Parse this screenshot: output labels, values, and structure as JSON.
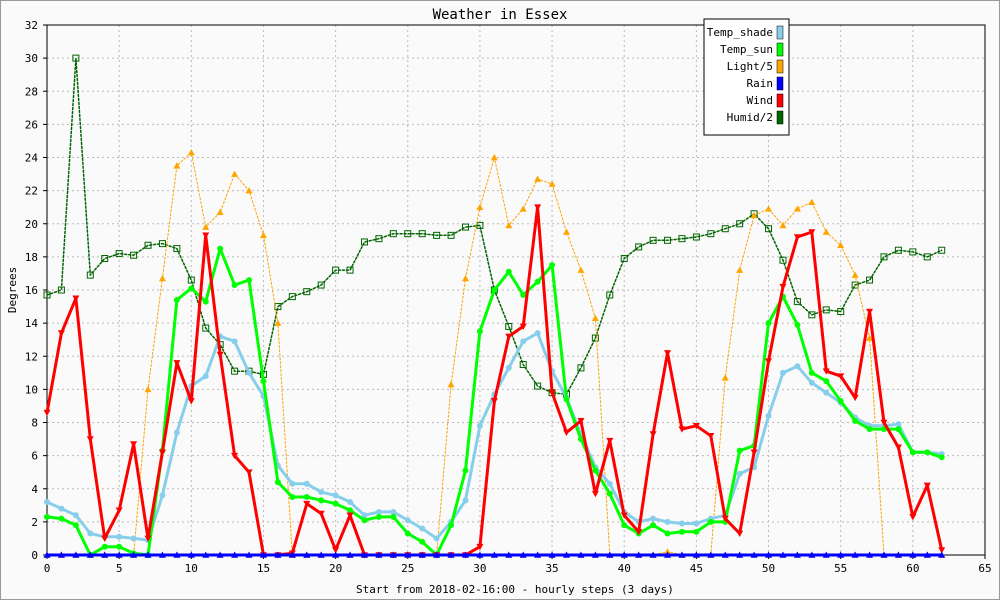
{
  "chart_data": {
    "type": "line",
    "title": "Weather in Essex",
    "xlabel": "Start from 2018-02-16:00 - hourly steps (3 days)",
    "ylabel": "Degrees",
    "xlim": [
      0,
      65
    ],
    "ylim": [
      0,
      32
    ],
    "xticks": [
      0,
      5,
      10,
      15,
      20,
      25,
      30,
      35,
      40,
      45,
      50,
      55,
      60,
      65
    ],
    "yticks": [
      0,
      2,
      4,
      6,
      8,
      10,
      12,
      14,
      16,
      18,
      20,
      22,
      24,
      26,
      28,
      30,
      32
    ],
    "grid": true,
    "legend_position": "top-right",
    "x": [
      0,
      1,
      2,
      3,
      4,
      5,
      6,
      7,
      8,
      9,
      10,
      11,
      12,
      13,
      14,
      15,
      16,
      17,
      18,
      19,
      20,
      21,
      22,
      23,
      24,
      25,
      26,
      27,
      28,
      29,
      30,
      31,
      32,
      33,
      34,
      35,
      36,
      37,
      38,
      39,
      40,
      41,
      42,
      43,
      44,
      45,
      46,
      47,
      48,
      49,
      50,
      51,
      52,
      53,
      54,
      55,
      56,
      57,
      58,
      59,
      60,
      61,
      62
    ],
    "series": [
      {
        "name": "Temp_shade",
        "color": "#87ceeb",
        "values": [
          3.2,
          2.8,
          2.4,
          1.3,
          1.1,
          1.1,
          1.0,
          0.9,
          3.6,
          7.4,
          10.2,
          10.8,
          13.2,
          12.9,
          11.0,
          9.6,
          5.4,
          4.3,
          4.3,
          3.8,
          3.6,
          3.2,
          2.4,
          2.6,
          2.6,
          2.1,
          1.6,
          1.0,
          2.0,
          3.3,
          7.8,
          9.7,
          11.3,
          12.9,
          13.4,
          11.1,
          9.5,
          7.3,
          5.3,
          4.3,
          2.6,
          2.0,
          2.2,
          2.0,
          1.9,
          1.9,
          2.2,
          2.4,
          4.9,
          5.3,
          8.4,
          11.0,
          11.4,
          10.4,
          9.8,
          9.2,
          8.3,
          7.8,
          7.8,
          7.9,
          6.2,
          6.2,
          6.1
        ]
      },
      {
        "name": "Temp_sun",
        "color": "#00ff00",
        "values": [
          2.3,
          2.2,
          1.8,
          0.0,
          0.5,
          0.5,
          0.1,
          0.0,
          6.3,
          15.4,
          16.1,
          15.3,
          18.5,
          16.3,
          16.6,
          10.5,
          4.4,
          3.5,
          3.5,
          3.3,
          3.1,
          2.7,
          2.1,
          2.3,
          2.3,
          1.3,
          0.8,
          0.0,
          1.8,
          5.1,
          13.5,
          16.0,
          17.1,
          15.7,
          16.5,
          17.5,
          9.4,
          7.0,
          5.1,
          3.7,
          1.8,
          1.3,
          1.8,
          1.3,
          1.4,
          1.4,
          2.0,
          2.0,
          6.3,
          6.6,
          14.0,
          15.6,
          13.9,
          11.0,
          10.5,
          9.3,
          8.1,
          7.6,
          7.6,
          7.6,
          6.2,
          6.2,
          5.9
        ]
      },
      {
        "name": "Light/5",
        "color": "#ffa500",
        "values": [
          0.0,
          0.0,
          0.0,
          0.0,
          0.0,
          0.0,
          0.0,
          10.0,
          16.7,
          23.5,
          24.3,
          19.8,
          20.7,
          23.0,
          22.0,
          19.3,
          14.0,
          0.0,
          0.0,
          0.0,
          0.0,
          0.0,
          0.0,
          0.0,
          0.0,
          0.0,
          0.0,
          0.0,
          10.3,
          16.7,
          21.0,
          24.0,
          19.9,
          20.9,
          22.7,
          22.4,
          19.5,
          17.2,
          14.3,
          0.0,
          0.0,
          0.0,
          0.0,
          0.2,
          0.0,
          0.0,
          0.0,
          10.7,
          17.2,
          20.5,
          20.9,
          19.9,
          20.9,
          21.3,
          19.5,
          18.7,
          16.9,
          13.1,
          0.0,
          0.0,
          0.0,
          0.0,
          0.0
        ]
      },
      {
        "name": "Rain",
        "color": "#0000ff",
        "values": [
          0,
          0,
          0,
          0,
          0,
          0,
          0,
          0,
          0,
          0,
          0,
          0,
          0,
          0,
          0,
          0,
          0,
          0,
          0,
          0,
          0,
          0,
          0,
          0,
          0,
          0,
          0,
          0,
          0,
          0,
          0,
          0,
          0,
          0,
          0,
          0,
          0,
          0,
          0,
          0,
          0,
          0,
          0,
          0,
          0,
          0,
          0,
          0,
          0,
          0,
          0,
          0,
          0,
          0,
          0,
          0,
          0,
          0,
          0,
          0,
          0,
          0,
          0
        ]
      },
      {
        "name": "Wind",
        "color": "#ff0000",
        "values": [
          8.6,
          13.4,
          15.5,
          7.0,
          1.0,
          2.7,
          6.7,
          1.0,
          6.2,
          11.6,
          9.3,
          19.3,
          12.1,
          6.0,
          5.0,
          0.0,
          0.0,
          0.1,
          3.1,
          2.5,
          0.3,
          2.4,
          0.0,
          0.0,
          0.0,
          0.0,
          0.0,
          0.0,
          0.0,
          0.0,
          0.5,
          9.3,
          13.2,
          13.8,
          21.0,
          9.8,
          7.4,
          8.1,
          3.7,
          6.9,
          2.4,
          1.4,
          7.3,
          12.2,
          7.6,
          7.8,
          7.2,
          2.2,
          1.3,
          6.2,
          11.7,
          16.2,
          19.2,
          19.5,
          11.1,
          10.8,
          9.5,
          14.7,
          8.0,
          6.5,
          2.3,
          4.2,
          0.3
        ]
      },
      {
        "name": "Humid/2",
        "color": "#006400",
        "values": [
          15.7,
          16.0,
          30.0,
          16.9,
          17.9,
          18.2,
          18.1,
          18.7,
          18.8,
          18.5,
          16.6,
          13.7,
          12.7,
          11.1,
          11.1,
          10.9,
          15.0,
          15.6,
          15.9,
          16.3,
          17.2,
          17.2,
          18.9,
          19.1,
          19.4,
          19.4,
          19.4,
          19.3,
          19.3,
          19.8,
          19.9,
          16.0,
          13.8,
          11.5,
          10.2,
          9.8,
          9.7,
          11.3,
          13.1,
          15.7,
          17.9,
          18.6,
          19.0,
          19.0,
          19.1,
          19.2,
          19.4,
          19.7,
          20.0,
          20.6,
          19.7,
          17.8,
          15.3,
          14.5,
          14.8,
          14.7,
          16.3,
          16.6,
          18.0,
          18.4,
          18.3,
          18.0,
          18.4
        ]
      }
    ]
  }
}
